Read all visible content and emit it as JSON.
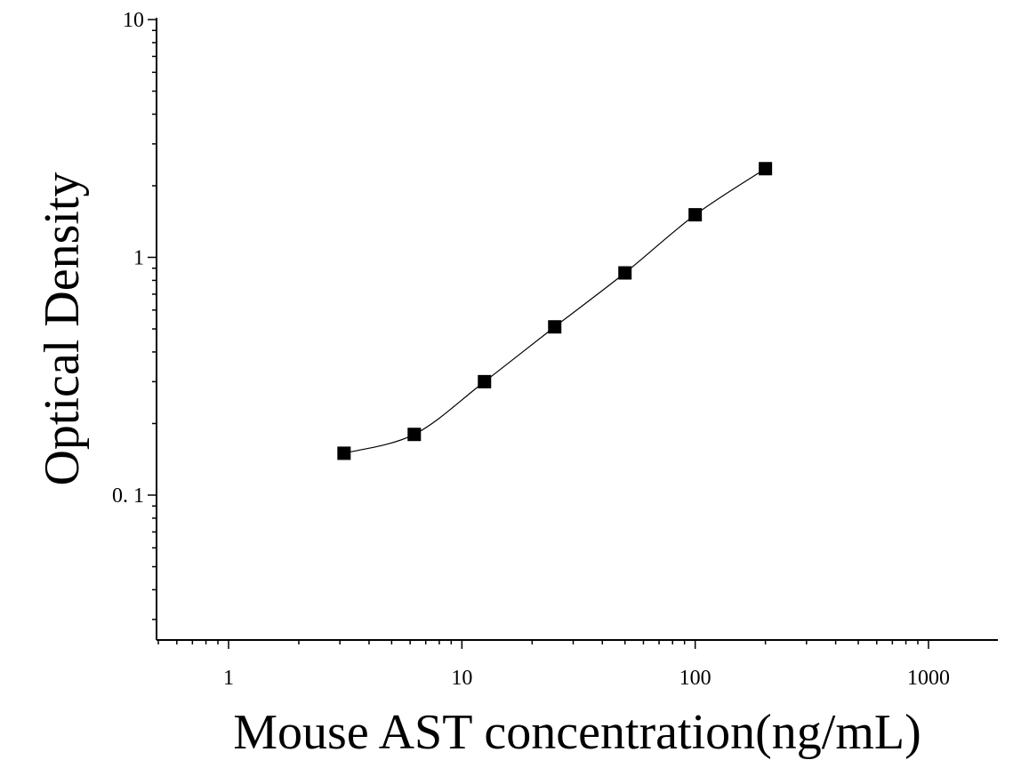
{
  "chart_data": {
    "type": "scatter",
    "title": "",
    "xlabel": "Mouse AST concentration(ng/mL)",
    "ylabel": "Optical Density",
    "xscale": "log",
    "yscale": "log",
    "xlim": [
      0.5,
      2000
    ],
    "ylim": [
      0.025,
      10
    ],
    "xticks": [
      {
        "value": 1,
        "label": "1"
      },
      {
        "value": 10,
        "label": "10"
      },
      {
        "value": 100,
        "label": "100"
      },
      {
        "value": 1000,
        "label": "1000"
      }
    ],
    "yticks": [
      {
        "value": 0.1,
        "label": "0. 1"
      },
      {
        "value": 1,
        "label": "1"
      },
      {
        "value": 10,
        "label": "10"
      }
    ],
    "grid": false,
    "legend": "none",
    "series": [
      {
        "marker": "square",
        "color": "#000000",
        "fit_curve": true,
        "x": [
          3.125,
          6.25,
          12.5,
          25,
          50,
          100,
          200
        ],
        "y": [
          0.15,
          0.18,
          0.3,
          0.51,
          0.86,
          1.51,
          2.36
        ]
      }
    ]
  }
}
